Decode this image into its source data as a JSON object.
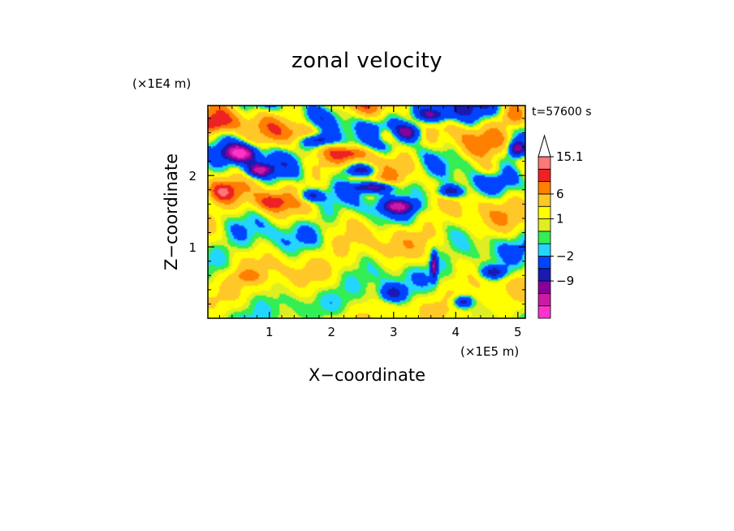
{
  "chart_data": {
    "type": "heatmap",
    "title": "zonal velocity",
    "xlabel": "X−coordinate",
    "ylabel": "Z−coordinate",
    "x_unit": "(×1E5 m)",
    "y_unit": "(×1E4 m)",
    "time_label": "t=57600 s",
    "xlim": [
      0.01,
      5.12
    ],
    "ylim": [
      0.0,
      2.98
    ],
    "x_ticks": [
      1,
      2,
      3,
      4,
      5
    ],
    "y_ticks": [
      1,
      2
    ],
    "x_tick_labels": [
      "1",
      "2",
      "3",
      "4",
      "5"
    ],
    "y_tick_labels": [
      "1",
      "2"
    ],
    "colorbar": {
      "levels": [
        -15,
        -12,
        -9,
        -6,
        -2,
        -1,
        0,
        1,
        3,
        6,
        9,
        12,
        15.1
      ],
      "labeled_levels": [
        15.1,
        6,
        1,
        -2,
        -9
      ],
      "labels": [
        "15.1",
        "6",
        "1",
        "−2",
        "−9"
      ],
      "colors": [
        "#ff33cc",
        "#cc1aa6",
        "#880099",
        "#1a1ab3",
        "#0044ff",
        "#22d6ff",
        "#33ee55",
        "#ddee22",
        "#ffff00",
        "#ffc828",
        "#ff7f00",
        "#ee2222",
        "#ff7777",
        "#ffbbbb",
        "#ffffff"
      ],
      "extend_max": true
    }
  }
}
